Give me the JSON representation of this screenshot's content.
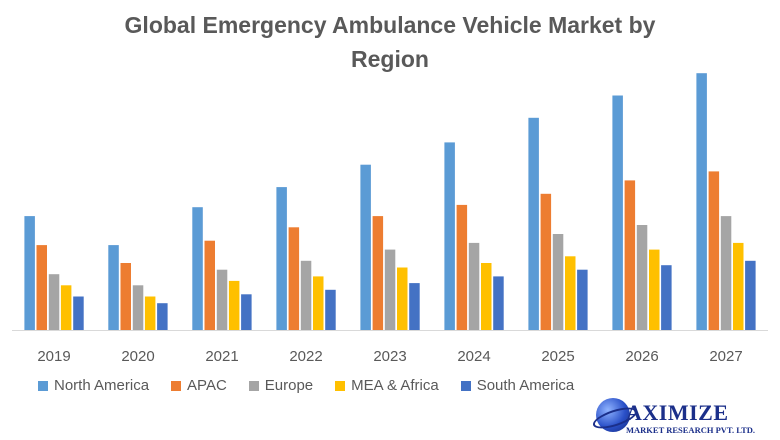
{
  "chart_data": {
    "type": "bar",
    "title_line1": "Global Emergency Ambulance Vehicle Market  by",
    "title_line2": "Region",
    "categories": [
      "2019",
      "2020",
      "2021",
      "2022",
      "2023",
      "2024",
      "2025",
      "2026",
      "2027"
    ],
    "series": [
      {
        "name": "North America",
        "color": "#5B9BD5",
        "values": [
          51,
          38,
          55,
          64,
          74,
          84,
          95,
          105,
          115
        ]
      },
      {
        "name": "APAC",
        "color": "#ED7D31",
        "values": [
          38,
          30,
          40,
          46,
          51,
          56,
          61,
          67,
          71
        ]
      },
      {
        "name": "Europe",
        "color": "#A5A5A5",
        "values": [
          25,
          20,
          27,
          31,
          36,
          39,
          43,
          47,
          51
        ]
      },
      {
        "name": "MEA & Africa",
        "color": "#FFC000",
        "values": [
          20,
          15,
          22,
          24,
          28,
          30,
          33,
          36,
          39
        ]
      },
      {
        "name": "South America",
        "color": "#4472C4",
        "values": [
          15,
          12,
          16,
          18,
          21,
          24,
          27,
          29,
          31
        ]
      }
    ],
    "xlabel": "",
    "ylabel": "",
    "ylim": [
      0,
      120
    ],
    "grid": false,
    "legend_position": "bottom"
  },
  "branding": {
    "logo_word": "AXIMIZE",
    "logo_sub": "MARKET RESEARCH PVT. LTD."
  }
}
